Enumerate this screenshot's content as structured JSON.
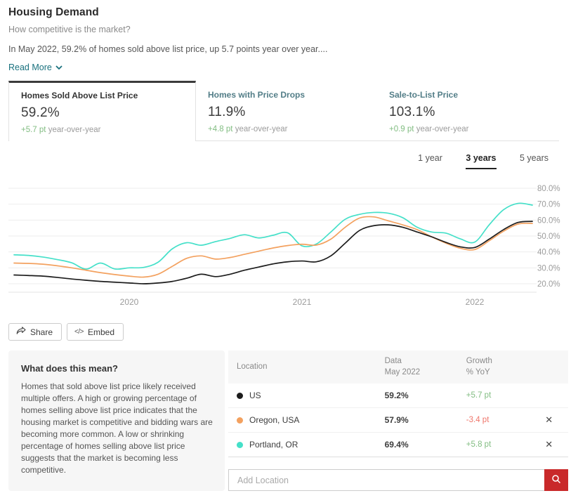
{
  "header": {
    "title": "Housing Demand",
    "subtitle": "How competitive is the market?",
    "summary": "In May 2022, 59.2% of homes sold above list price, up 5.7 points year over year....",
    "read_more_label": "Read More"
  },
  "metric_tabs": [
    {
      "label": "Homes Sold Above List Price",
      "value": "59.2%",
      "change": "+5.7 pt",
      "change_suffix": " year-over-year",
      "selected": true
    },
    {
      "label": "Homes with Price Drops",
      "value": "11.9%",
      "change": "+4.8 pt",
      "change_suffix": " year-over-year",
      "selected": false
    },
    {
      "label": "Sale-to-List Price",
      "value": "103.1%",
      "change": "+0.9 pt",
      "change_suffix": " year-over-year",
      "selected": false
    }
  ],
  "range_selector": {
    "options": [
      "1 year",
      "3 years",
      "5 years"
    ],
    "selected": "3 years"
  },
  "chart_data": {
    "type": "line",
    "title": "Homes Sold Above List Price, 3 years",
    "x": [
      "2019-05",
      "2019-06",
      "2019-07",
      "2019-08",
      "2019-09",
      "2019-10",
      "2019-11",
      "2019-12",
      "2020-01",
      "2020-02",
      "2020-03",
      "2020-04",
      "2020-05",
      "2020-06",
      "2020-07",
      "2020-08",
      "2020-09",
      "2020-10",
      "2020-11",
      "2020-12",
      "2021-01",
      "2021-02",
      "2021-03",
      "2021-04",
      "2021-05",
      "2021-06",
      "2021-07",
      "2021-08",
      "2021-09",
      "2021-10",
      "2021-11",
      "2021-12",
      "2022-01",
      "2022-02",
      "2022-03",
      "2022-04",
      "2022-05"
    ],
    "x_tick_labels": [
      "2020",
      "2021",
      "2022"
    ],
    "x_tick_indices": [
      8,
      20,
      32
    ],
    "ylim": [
      20,
      80
    ],
    "y_ticks": [
      80,
      70,
      60,
      50,
      40,
      30,
      20
    ],
    "y_tick_labels": [
      "80.0%",
      "70.0%",
      "60.0%",
      "50.0%",
      "40.0%",
      "30.0%",
      "20.0%"
    ],
    "grid": true,
    "legend_position": "table-below",
    "series": [
      {
        "name": "US",
        "color": "#1c1c1c",
        "values": [
          25.5,
          25.2,
          24.8,
          24.0,
          23.0,
          22.2,
          21.5,
          21.0,
          20.5,
          20.0,
          20.5,
          21.5,
          23.5,
          26.0,
          24.5,
          26.0,
          28.5,
          30.5,
          32.5,
          33.8,
          34.3,
          33.8,
          37.5,
          45.5,
          53.5,
          56.5,
          57.0,
          55.5,
          52.5,
          49.5,
          46.0,
          43.2,
          42.8,
          48.0,
          54.0,
          58.5,
          59.2
        ]
      },
      {
        "name": "Oregon, USA",
        "color": "#f3a15f",
        "values": [
          33.0,
          32.8,
          32.3,
          31.3,
          30.0,
          28.5,
          27.0,
          25.8,
          24.8,
          24.2,
          26.0,
          31.0,
          36.0,
          37.5,
          35.5,
          36.5,
          38.5,
          40.5,
          42.5,
          44.0,
          44.8,
          44.3,
          48.0,
          55.5,
          61.3,
          62.0,
          59.5,
          57.0,
          54.0,
          49.5,
          45.5,
          42.3,
          41.5,
          47.0,
          53.0,
          57.5,
          57.9
        ]
      },
      {
        "name": "Portland, OR",
        "color": "#45e0c9",
        "values": [
          38.2,
          37.8,
          36.8,
          35.2,
          33.2,
          29.2,
          33.0,
          29.3,
          30.0,
          30.3,
          33.5,
          42.0,
          45.8,
          44.2,
          46.5,
          48.5,
          50.8,
          48.8,
          50.5,
          52.0,
          43.8,
          45.0,
          52.5,
          60.5,
          63.6,
          64.8,
          64.3,
          61.5,
          55.5,
          52.5,
          51.8,
          48.2,
          46.2,
          57.0,
          66.5,
          70.5,
          69.4
        ]
      }
    ]
  },
  "actions": {
    "share_label": "Share",
    "embed_label": "Embed"
  },
  "explainer": {
    "title": "What does this mean?",
    "body": "Homes that sold above list price likely received multiple offers. A high or growing percentage of homes selling above list price indicates that the housing market is competitive and bidding wars are becoming more common. A low or shrinking percentage of homes selling above list price suggests that the market is becoming less competitive."
  },
  "table": {
    "col_location": "Location",
    "col_data_line1": "Data",
    "col_data_line2": "May 2022",
    "col_growth_line1": "Growth",
    "col_growth_line2": "% YoY",
    "rows": [
      {
        "location": "US",
        "dot_color": "#1c1c1c",
        "value": "59.2%",
        "growth": "+5.7 pt",
        "removable": false
      },
      {
        "location": "Oregon, USA",
        "dot_color": "#f3a15f",
        "value": "57.9%",
        "growth": "-3.4 pt",
        "removable": true
      },
      {
        "location": "Portland, OR",
        "dot_color": "#45e0c9",
        "value": "69.4%",
        "growth": "+5.8 pt",
        "removable": true
      }
    ]
  },
  "add_location": {
    "placeholder": "Add Location"
  },
  "colors": {
    "positive": "#82bd82",
    "negative": "#ef766b",
    "link": "#19717e",
    "search_button": "#c9292a"
  }
}
